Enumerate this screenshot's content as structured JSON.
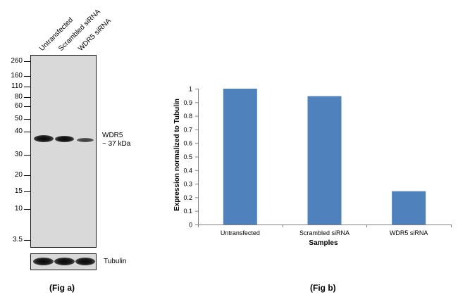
{
  "fig_a": {
    "lanes": [
      "Untransfected",
      "Scrambled siRNA",
      "WDR5 siRNA"
    ],
    "mw_markers": [
      "260",
      "160",
      "110",
      "80",
      "60",
      "50",
      "40",
      "30",
      "20",
      "15",
      "10",
      "3.5"
    ],
    "band_label_line1": "WDR5",
    "band_label_line2": "~ 37 kDa",
    "loading_label": "Tubulin",
    "caption": "(Fig a)"
  },
  "fig_b": {
    "caption": "(Fig b)"
  },
  "chart_data": {
    "type": "bar",
    "categories": [
      "Untransfected",
      "Scrambled siRNA",
      "WDR5 siRNA"
    ],
    "values": [
      1.0,
      0.945,
      0.245
    ],
    "xlabel": "Samples",
    "ylabel": "Expression  normalized to Tubulin",
    "ylim": [
      0,
      1
    ],
    "yticks": [
      "0",
      "0.1",
      "0.2",
      "0.3",
      "0.4",
      "0.5",
      "0.6",
      "0.7",
      "0.8",
      "0.9",
      "1"
    ],
    "bar_color": "#4f81bd",
    "grid": false
  }
}
